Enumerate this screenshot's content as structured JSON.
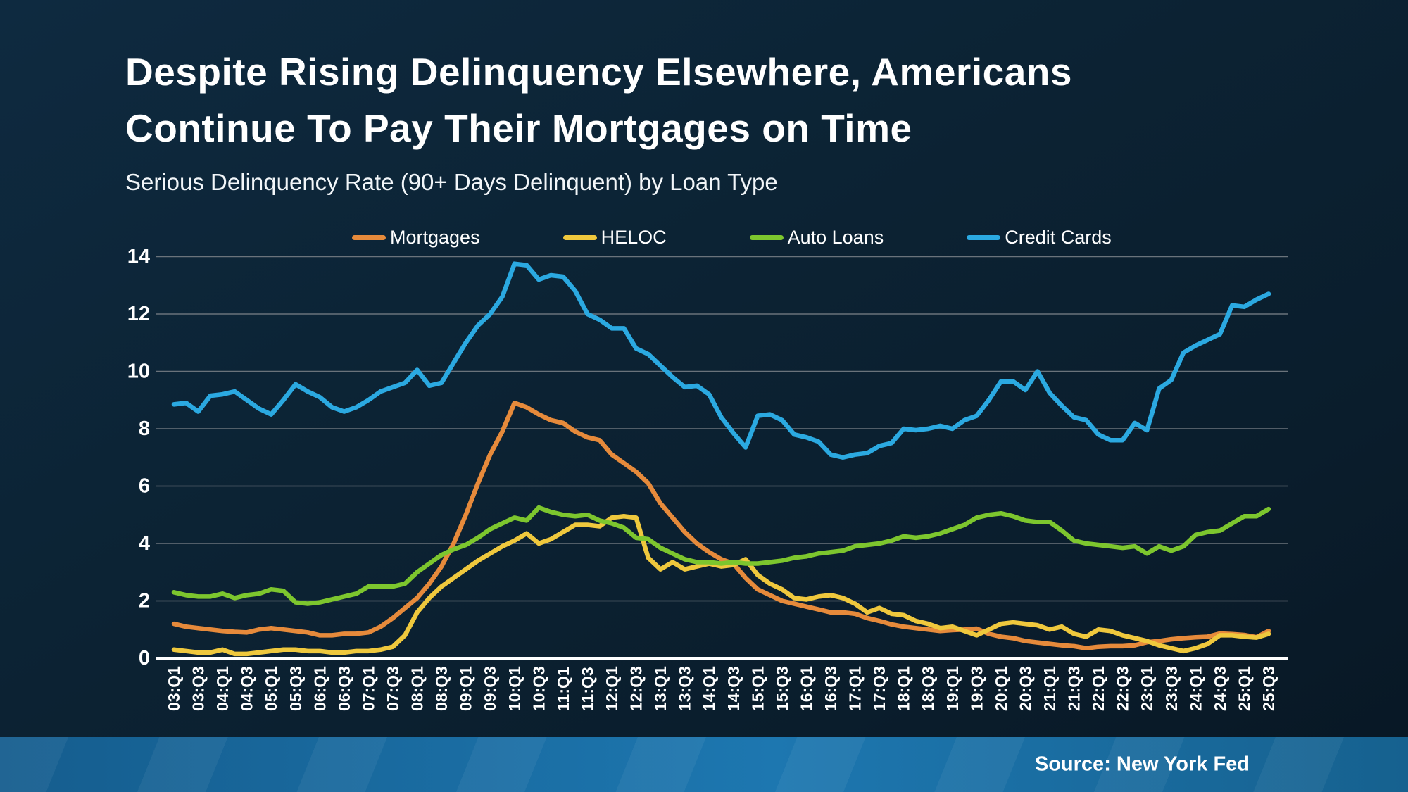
{
  "slide": {
    "title_line1": "Despite Rising Delinquency Elsewhere, Americans",
    "title_line2": "Continue To Pay Their Mortgages on Time",
    "subtitle": "Serious Delinquency Rate (90+ Days Delinquent) by Loan Type",
    "source": "Source: New York Fed"
  },
  "colors": {
    "background_top": "#0e2a40",
    "background_bottom": "#081724",
    "gridline": "#6a737b",
    "zero_axis": "#ffffff",
    "text": "#ffffff",
    "footer_bar": "#1d77b0",
    "mortgages": "#e68a3b",
    "heloc": "#efc83d",
    "auto_loans": "#7dc62e",
    "credit_cards": "#2ba9e1"
  },
  "chart_data": {
    "type": "line",
    "title": "Serious Delinquency Rate (90+ Days Delinquent) by Loan Type",
    "xlabel": "",
    "ylabel": "",
    "ylim": [
      0,
      14
    ],
    "y_ticks": [
      0,
      2,
      4,
      6,
      8,
      10,
      12,
      14
    ],
    "tick_every": 2,
    "grid": true,
    "legend_position": "top",
    "categories": [
      "03:Q1",
      "03:Q2",
      "03:Q3",
      "03:Q4",
      "04:Q1",
      "04:Q2",
      "04:Q3",
      "04:Q4",
      "05:Q1",
      "05:Q2",
      "05:Q3",
      "05:Q4",
      "06:Q1",
      "06:Q2",
      "06:Q3",
      "06:Q4",
      "07:Q1",
      "07:Q2",
      "07:Q3",
      "07:Q4",
      "08:Q1",
      "08:Q2",
      "08:Q3",
      "08:Q4",
      "09:Q1",
      "09:Q2",
      "09:Q3",
      "09:Q4",
      "10:Q1",
      "10:Q2",
      "10:Q3",
      "10:Q4",
      "11:Q1",
      "11:Q2",
      "11:Q3",
      "11:Q4",
      "12:Q1",
      "12:Q2",
      "12:Q3",
      "12:Q4",
      "13:Q1",
      "13:Q2",
      "13:Q3",
      "13:Q4",
      "14:Q1",
      "14:Q2",
      "14:Q3",
      "14:Q4",
      "15:Q1",
      "15:Q2",
      "15:Q3",
      "15:Q4",
      "16:Q1",
      "16:Q2",
      "16:Q3",
      "16:Q4",
      "17:Q1",
      "17:Q2",
      "17:Q3",
      "17:Q4",
      "18:Q1",
      "18:Q2",
      "18:Q3",
      "18:Q4",
      "19:Q1",
      "19:Q2",
      "19:Q3",
      "19:Q4",
      "20:Q1",
      "20:Q2",
      "20:Q3",
      "20:Q4",
      "21:Q1",
      "21:Q2",
      "21:Q3",
      "21:Q4",
      "22:Q1",
      "22:Q2",
      "22:Q3",
      "22:Q4",
      "23:Q1",
      "23:Q2",
      "23:Q3",
      "23:Q4",
      "24:Q1",
      "24:Q2",
      "24:Q3",
      "24:Q4",
      "25:Q1",
      "25:Q2",
      "25:Q3"
    ],
    "series": [
      {
        "name": "Mortgages",
        "color": "#e68a3b",
        "values": [
          1.2,
          1.1,
          1.05,
          1.0,
          0.95,
          0.92,
          0.9,
          1.0,
          1.05,
          1.0,
          0.95,
          0.9,
          0.8,
          0.8,
          0.85,
          0.85,
          0.9,
          1.1,
          1.4,
          1.75,
          2.1,
          2.6,
          3.2,
          4.0,
          5.0,
          6.1,
          7.1,
          7.9,
          8.9,
          8.75,
          8.5,
          8.3,
          8.2,
          7.9,
          7.7,
          7.6,
          7.1,
          6.8,
          6.5,
          6.1,
          5.4,
          4.9,
          4.4,
          4.0,
          3.7,
          3.45,
          3.3,
          2.8,
          2.4,
          2.2,
          2.0,
          1.9,
          1.8,
          1.7,
          1.6,
          1.6,
          1.55,
          1.4,
          1.3,
          1.18,
          1.1,
          1.05,
          1.0,
          0.95,
          0.98,
          1.0,
          1.03,
          0.85,
          0.75,
          0.7,
          0.6,
          0.55,
          0.5,
          0.45,
          0.42,
          0.35,
          0.4,
          0.42,
          0.42,
          0.45,
          0.56,
          0.6,
          0.66,
          0.7,
          0.73,
          0.75,
          0.86,
          0.84,
          0.81,
          0.73,
          0.95
        ]
      },
      {
        "name": "HELOC",
        "color": "#efc83d",
        "values": [
          0.3,
          0.25,
          0.2,
          0.2,
          0.3,
          0.15,
          0.15,
          0.2,
          0.25,
          0.3,
          0.3,
          0.25,
          0.25,
          0.2,
          0.2,
          0.25,
          0.25,
          0.3,
          0.4,
          0.8,
          1.6,
          2.1,
          2.5,
          2.8,
          3.1,
          3.4,
          3.65,
          3.9,
          4.1,
          4.35,
          4.0,
          4.15,
          4.4,
          4.65,
          4.65,
          4.6,
          4.9,
          4.95,
          4.9,
          3.5,
          3.1,
          3.35,
          3.1,
          3.2,
          3.3,
          3.2,
          3.25,
          3.45,
          2.9,
          2.6,
          2.4,
          2.1,
          2.05,
          2.15,
          2.2,
          2.1,
          1.9,
          1.6,
          1.75,
          1.55,
          1.5,
          1.3,
          1.2,
          1.05,
          1.1,
          0.95,
          0.8,
          1.0,
          1.2,
          1.25,
          1.2,
          1.15,
          1.0,
          1.1,
          0.85,
          0.75,
          1.0,
          0.95,
          0.8,
          0.7,
          0.6,
          0.45,
          0.35,
          0.25,
          0.35,
          0.5,
          0.8,
          0.8,
          0.75,
          0.72,
          0.85
        ]
      },
      {
        "name": "Auto Loans",
        "color": "#7dc62e",
        "values": [
          2.3,
          2.2,
          2.15,
          2.15,
          2.25,
          2.1,
          2.2,
          2.25,
          2.4,
          2.35,
          1.95,
          1.9,
          1.95,
          2.05,
          2.15,
          2.25,
          2.5,
          2.5,
          2.5,
          2.6,
          3.0,
          3.3,
          3.6,
          3.8,
          3.95,
          4.2,
          4.5,
          4.7,
          4.9,
          4.8,
          5.25,
          5.1,
          5.0,
          4.95,
          5.0,
          4.8,
          4.7,
          4.55,
          4.2,
          4.15,
          3.85,
          3.65,
          3.45,
          3.35,
          3.35,
          3.3,
          3.35,
          3.3,
          3.3,
          3.35,
          3.4,
          3.5,
          3.55,
          3.65,
          3.7,
          3.75,
          3.9,
          3.95,
          4.0,
          4.1,
          4.25,
          4.2,
          4.25,
          4.35,
          4.5,
          4.65,
          4.9,
          5.0,
          5.05,
          4.95,
          4.8,
          4.75,
          4.75,
          4.45,
          4.1,
          4.0,
          3.95,
          3.9,
          3.85,
          3.9,
          3.65,
          3.9,
          3.75,
          3.9,
          4.3,
          4.4,
          4.45,
          4.7,
          4.95,
          4.95,
          5.2
        ]
      },
      {
        "name": "Credit Cards",
        "color": "#2ba9e1",
        "values": [
          8.85,
          8.9,
          8.6,
          9.15,
          9.2,
          9.3,
          9.0,
          8.7,
          8.5,
          9.0,
          9.55,
          9.3,
          9.1,
          8.75,
          8.6,
          8.75,
          9.0,
          9.3,
          9.45,
          9.6,
          10.05,
          9.5,
          9.6,
          10.3,
          11.0,
          11.6,
          12.0,
          12.6,
          13.75,
          13.7,
          13.2,
          13.35,
          13.3,
          12.8,
          12.0,
          11.8,
          11.5,
          11.5,
          10.8,
          10.6,
          10.2,
          9.8,
          9.45,
          9.5,
          9.2,
          8.4,
          7.85,
          7.35,
          8.45,
          8.5,
          8.3,
          7.8,
          7.7,
          7.55,
          7.1,
          7.0,
          7.1,
          7.15,
          7.4,
          7.5,
          8.0,
          7.95,
          8.0,
          8.1,
          8.0,
          8.3,
          8.45,
          9.0,
          9.65,
          9.65,
          9.35,
          10.0,
          9.25,
          8.8,
          8.4,
          8.3,
          7.8,
          7.6,
          7.6,
          8.2,
          7.95,
          9.4,
          9.7,
          10.65,
          10.9,
          11.1,
          11.3,
          12.3,
          12.25,
          12.5,
          12.7
        ]
      }
    ]
  }
}
